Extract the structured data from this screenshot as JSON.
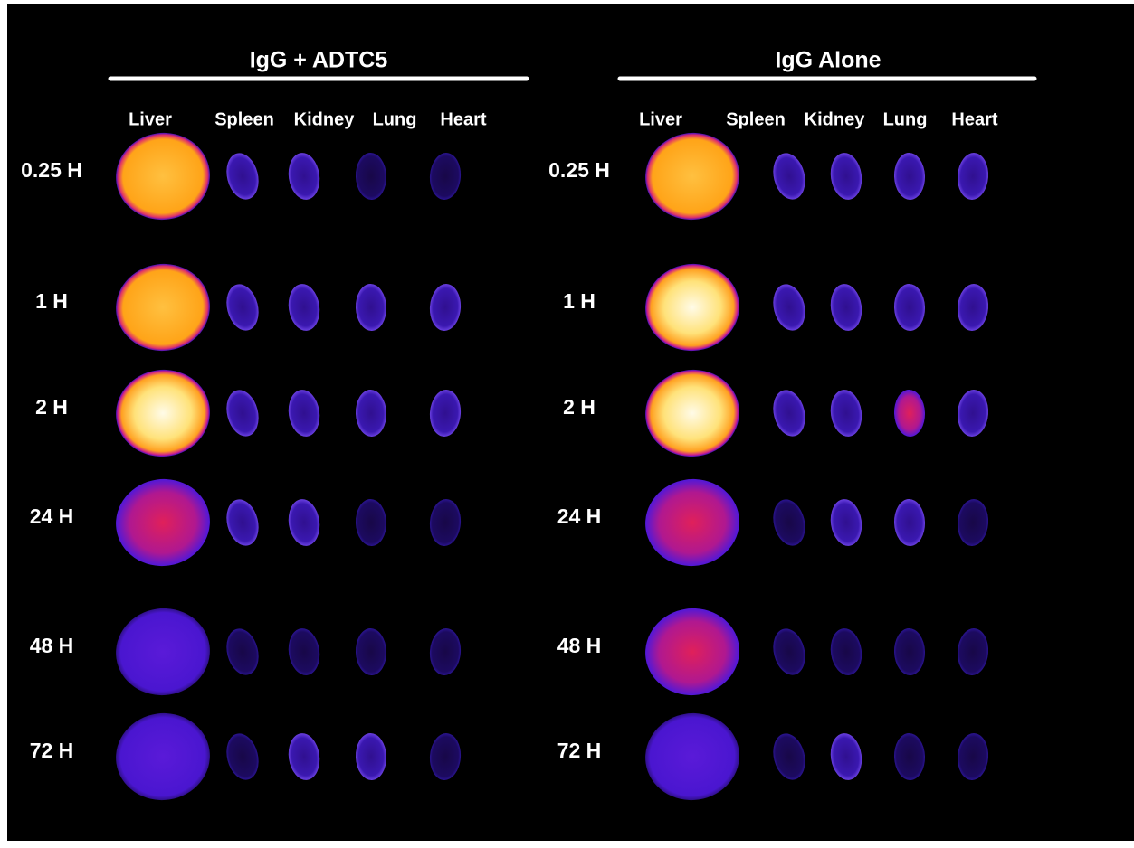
{
  "panels": [
    {
      "title": "IgG + ADTC5",
      "organs": [
        "Liver",
        "Spleen",
        "Kidney",
        "Lung",
        "Heart"
      ],
      "times": [
        "0.25 H",
        "1 H",
        "2 H",
        "24 H",
        "48 H",
        "72 H"
      ]
    },
    {
      "title": "IgG Alone",
      "organs": [
        "Liver",
        "Spleen",
        "Kidney",
        "Lung",
        "Heart"
      ],
      "times": [
        "0.25 H",
        "1 H",
        "2 H",
        "24 H",
        "48 H",
        "72 H"
      ]
    }
  ]
}
